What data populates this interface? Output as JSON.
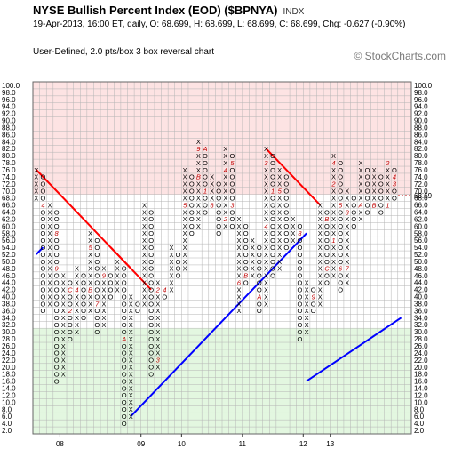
{
  "header": {
    "title": "NYSE Bullish Percent Index (EOD) ($BPNYA)",
    "exchange": "INDX",
    "quote_line": "19-Apr-2013, 16:00 ET, daily, O: 68.699, H: 68.699, L: 68.699, C: 68.699, Chg: -0.627 (-0.90%)",
    "method": "User-Defined, 2.0 pts/box 3 box reversal chart",
    "watermark": "© StockCharts.com"
  },
  "colors": {
    "overbought_zone": "#fde3e3",
    "oversold_zone": "#e3f7e0",
    "grid": "#b4b4b4",
    "x_mark": "#000000",
    "o_mark": "#000000",
    "month_mark": "#c00000",
    "resistance_line": "#ff0000",
    "support_line": "#0000ff",
    "current_value": "#c00000"
  },
  "chart_data": {
    "type": "point-and-figure",
    "box_size": 2.0,
    "reversal_boxes": 3,
    "ylim": [
      2,
      100
    ],
    "y_ticks": [
      2,
      4,
      6,
      8,
      10,
      12,
      14,
      16,
      18,
      20,
      22,
      24,
      26,
      28,
      30,
      32,
      34,
      36,
      38,
      40,
      42,
      44,
      46,
      48,
      50,
      52,
      54,
      56,
      58,
      60,
      62,
      64,
      66,
      68,
      70,
      72,
      74,
      76,
      78,
      80,
      82,
      84,
      86,
      88,
      90,
      92,
      94,
      96,
      98,
      100
    ],
    "y_tick_labels": [
      "2.0",
      "4.0",
      "6.0",
      "8.0",
      "10.0",
      "12.0",
      "14.0",
      "16.0",
      "18.0",
      "20.0",
      "22.0",
      "24.0",
      "26.0",
      "28.0",
      "30.0",
      "32.0",
      "34.0",
      "36.0",
      "38.0",
      "40.0",
      "42.0",
      "44.0",
      "46.0",
      "48.0",
      "50.0",
      "52.0",
      "54.0",
      "56.0",
      "58.0",
      "60.0",
      "62.0",
      "64.0",
      "66.0",
      "68.0",
      "70.0",
      "72.0",
      "74.0",
      "76.0",
      "78.0",
      "80.0",
      "82.0",
      "84.0",
      "86.0",
      "88.0",
      "90.0",
      "92.0",
      "94.0",
      "96.0",
      "98.0",
      "100.0"
    ],
    "zones": [
      {
        "name": "overbought",
        "from": 70,
        "to": 100
      },
      {
        "name": "oversold",
        "from": 2,
        "to": 30
      }
    ],
    "x_tick_labels": [
      {
        "label": "08",
        "col": 4
      },
      {
        "label": "09",
        "col": 16
      },
      {
        "label": "10",
        "col": 22
      },
      {
        "label": "11",
        "col": 31
      },
      {
        "label": "12",
        "col": 40
      },
      {
        "label": "13",
        "col": 44
      }
    ],
    "last_value_label": "68.69",
    "columns": [
      {
        "type": "X",
        "low": 68,
        "high": 76
      },
      {
        "type": "O",
        "low": 36,
        "high": 74
      },
      {
        "type": "X",
        "low": 38,
        "high": 66
      },
      {
        "type": "O",
        "low": 16,
        "high": 64
      },
      {
        "type": "X",
        "low": 18,
        "high": 46
      },
      {
        "type": "O",
        "low": 28,
        "high": 44
      },
      {
        "type": "X",
        "low": 30,
        "high": 48
      },
      {
        "type": "O",
        "low": 34,
        "high": 46
      },
      {
        "type": "X",
        "low": 36,
        "high": 58
      },
      {
        "type": "O",
        "low": 30,
        "high": 56
      },
      {
        "type": "X",
        "low": 32,
        "high": 48
      },
      {
        "type": "O",
        "low": 40,
        "high": 46
      },
      {
        "type": "X",
        "low": 42,
        "high": 50
      },
      {
        "type": "O",
        "low": 4,
        "high": 48
      },
      {
        "type": "X",
        "low": 6,
        "high": 40
      },
      {
        "type": "O",
        "low": 36,
        "high": 38
      },
      {
        "type": "X",
        "low": 38,
        "high": 66
      },
      {
        "type": "O",
        "low": 18,
        "high": 64
      },
      {
        "type": "X",
        "low": 20,
        "high": 44
      },
      {
        "type": "O",
        "low": 40,
        "high": 42
      },
      {
        "type": "X",
        "low": 42,
        "high": 54
      },
      {
        "type": "O",
        "low": 46,
        "high": 52
      },
      {
        "type": "X",
        "low": 48,
        "high": 76
      },
      {
        "type": "O",
        "low": 58,
        "high": 74
      },
      {
        "type": "X",
        "low": 60,
        "high": 84
      },
      {
        "type": "O",
        "low": 64,
        "high": 82
      },
      {
        "type": "X",
        "low": 66,
        "high": 74
      },
      {
        "type": "O",
        "low": 58,
        "high": 72
      },
      {
        "type": "X",
        "low": 60,
        "high": 82
      },
      {
        "type": "O",
        "low": 60,
        "high": 80
      },
      {
        "type": "X",
        "low": 36,
        "high": 62
      },
      {
        "type": "O",
        "low": 44,
        "high": 60
      },
      {
        "type": "X",
        "low": 46,
        "high": 56
      },
      {
        "type": "O",
        "low": 36,
        "high": 54
      },
      {
        "type": "X",
        "low": 38,
        "high": 82
      },
      {
        "type": "O",
        "low": 46,
        "high": 80
      },
      {
        "type": "X",
        "low": 48,
        "high": 76
      },
      {
        "type": "O",
        "low": 54,
        "high": 74
      },
      {
        "type": "X",
        "low": 56,
        "high": 62
      },
      {
        "type": "O",
        "low": 28,
        "high": 60
      },
      {
        "type": "X",
        "low": 30,
        "high": 44
      },
      {
        "type": "O",
        "low": 36,
        "high": 42
      },
      {
        "type": "X",
        "low": 38,
        "high": 66
      },
      {
        "type": "O",
        "low": 44,
        "high": 64
      },
      {
        "type": "X",
        "low": 46,
        "high": 80
      },
      {
        "type": "O",
        "low": 42,
        "high": 78
      },
      {
        "type": "X",
        "low": 44,
        "high": 70
      },
      {
        "type": "O",
        "low": 60,
        "high": 68
      },
      {
        "type": "X",
        "low": 62,
        "high": 78
      },
      {
        "type": "O",
        "low": 64,
        "high": 76
      },
      {
        "type": "X",
        "low": 66,
        "high": 76
      },
      {
        "type": "O",
        "low": 64,
        "high": 74
      },
      {
        "type": "X",
        "low": 66,
        "high": 78
      },
      {
        "type": "O",
        "low": 68,
        "high": 76
      }
    ],
    "month_marks": [
      {
        "col": 1,
        "value": 66,
        "label": "4"
      },
      {
        "col": 3,
        "value": 58,
        "label": "8"
      },
      {
        "col": 3,
        "value": 48,
        "label": "9"
      },
      {
        "col": 5,
        "value": 42,
        "label": "C"
      },
      {
        "col": 5,
        "value": 36,
        "label": "2"
      },
      {
        "col": 6,
        "value": 42,
        "label": "4"
      },
      {
        "col": 8,
        "value": 54,
        "label": "5"
      },
      {
        "col": 8,
        "value": 42,
        "label": "B"
      },
      {
        "col": 9,
        "value": 38,
        "label": "7"
      },
      {
        "col": 10,
        "value": 46,
        "label": "9"
      },
      {
        "col": 13,
        "value": 28,
        "label": "A"
      },
      {
        "col": 16,
        "value": 36,
        "label": "B"
      },
      {
        "col": 16,
        "value": 34,
        "label": "C"
      },
      {
        "col": 18,
        "value": 42,
        "label": "2"
      },
      {
        "col": 18,
        "value": 22,
        "label": "3"
      },
      {
        "col": 19,
        "value": 42,
        "label": "4"
      },
      {
        "col": 22,
        "value": 66,
        "label": "5"
      },
      {
        "col": 24,
        "value": 82,
        "label": "9"
      },
      {
        "col": 24,
        "value": 74,
        "label": "B"
      },
      {
        "col": 25,
        "value": 82,
        "label": "A"
      },
      {
        "col": 25,
        "value": 70,
        "label": "1"
      },
      {
        "col": 26,
        "value": 66,
        "label": "8"
      },
      {
        "col": 28,
        "value": 76,
        "label": "4"
      },
      {
        "col": 28,
        "value": 62,
        "label": "2"
      },
      {
        "col": 29,
        "value": 78,
        "label": "5"
      },
      {
        "col": 29,
        "value": 66,
        "label": "3"
      },
      {
        "col": 30,
        "value": 44,
        "label": "6"
      },
      {
        "col": 31,
        "value": 46,
        "label": "B"
      },
      {
        "col": 32,
        "value": 40,
        "label": "7"
      },
      {
        "col": 33,
        "value": 40,
        "label": "A"
      },
      {
        "col": 34,
        "value": 78,
        "label": "3"
      },
      {
        "col": 34,
        "value": 60,
        "label": "4"
      },
      {
        "col": 35,
        "value": 70,
        "label": "1"
      },
      {
        "col": 36,
        "value": 70,
        "label": "5"
      },
      {
        "col": 37,
        "value": 48,
        "label": "9"
      },
      {
        "col": 39,
        "value": 58,
        "label": "8"
      },
      {
        "col": 41,
        "value": 40,
        "label": "9"
      },
      {
        "col": 43,
        "value": 62,
        "label": "B"
      },
      {
        "col": 43,
        "value": 48,
        "label": "C"
      },
      {
        "col": 44,
        "value": 78,
        "label": "4"
      },
      {
        "col": 44,
        "value": 72,
        "label": "2"
      },
      {
        "col": 44,
        "value": 56,
        "label": "1"
      },
      {
        "col": 45,
        "value": 66,
        "label": "5"
      },
      {
        "col": 45,
        "value": 48,
        "label": "6"
      },
      {
        "col": 46,
        "value": 64,
        "label": "8"
      },
      {
        "col": 46,
        "value": 48,
        "label": "7"
      },
      {
        "col": 48,
        "value": 66,
        "label": "A"
      },
      {
        "col": 50,
        "value": 66,
        "label": "B"
      },
      {
        "col": 50,
        "value": 62,
        "label": "C"
      },
      {
        "col": 52,
        "value": 78,
        "label": "2"
      },
      {
        "col": 52,
        "value": 66,
        "label": "1"
      },
      {
        "col": 53,
        "value": 74,
        "label": "4"
      },
      {
        "col": 53,
        "value": 72,
        "label": "3"
      }
    ],
    "trend_lines": [
      {
        "kind": "resistance",
        "from": {
          "col": 0,
          "value": 76
        },
        "to": {
          "col": 14,
          "value": 48
        }
      },
      {
        "kind": "resistance",
        "from": {
          "col": 11,
          "value": 54
        },
        "to": {
          "col": 17,
          "value": 42
        }
      },
      {
        "kind": "resistance",
        "from": {
          "col": 34,
          "value": 82
        },
        "to": {
          "col": 42,
          "value": 66
        }
      },
      {
        "kind": "support",
        "from": {
          "col": 0,
          "value": 52
        },
        "to": {
          "col": 1,
          "value": 54
        }
      },
      {
        "kind": "support",
        "from": {
          "col": 14,
          "value": 6
        },
        "to": {
          "col": 40,
          "value": 58
        }
      },
      {
        "kind": "support",
        "from": {
          "col": 40,
          "value": 16
        },
        "to": {
          "col": 54,
          "value": 34
        }
      }
    ]
  }
}
